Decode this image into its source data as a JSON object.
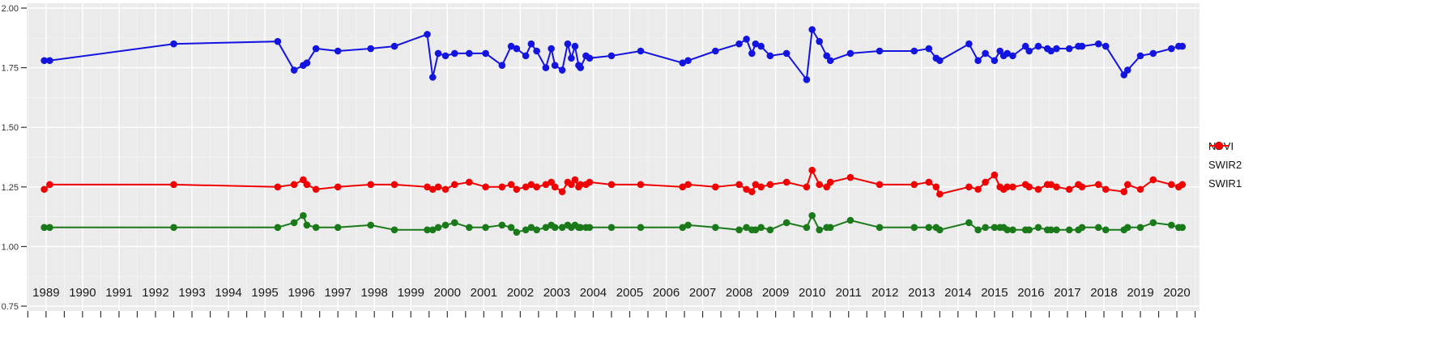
{
  "colors": {
    "panel_bg": "#EBEBEB",
    "grid_major": "#FFFFFF",
    "grid_minor": "#F7F7F7",
    "axis_text": "#333333",
    "tick": "#333333",
    "outer_bg": "#FFFFFF",
    "ndvi": "#1414E0",
    "swir2": "#1A7A1A",
    "swir1": "#F00000"
  },
  "legend": {
    "items": [
      {
        "label": "NDVI",
        "color": "#1414E0"
      },
      {
        "label": "SWIR2",
        "color": "#1A7A1A"
      },
      {
        "label": "SWIR1",
        "color": "#F00000"
      }
    ],
    "position": "right"
  },
  "chart_data": {
    "type": "line",
    "title": "",
    "xlabel": "",
    "ylabel": "",
    "grid": "major white + minor white on gray panel",
    "legend_position": "right",
    "xlim": [
      1988.47,
      2020.62
    ],
    "ylim": [
      0.75,
      2.0
    ],
    "x_tick_labels": [
      "1989",
      "1990",
      "1991",
      "1992",
      "1993",
      "1994",
      "1995",
      "1996",
      "1997",
      "1998",
      "1999",
      "2000",
      "2001",
      "2002",
      "2003",
      "2004",
      "2005",
      "2006",
      "2007",
      "2008",
      "2009",
      "2010",
      "2011",
      "2012",
      "2013",
      "2014",
      "2015",
      "2016",
      "2017",
      "2018",
      "2019",
      "2020"
    ],
    "x_ticks": [
      1989,
      1990,
      1991,
      1992,
      1993,
      1994,
      1995,
      1996,
      1997,
      1998,
      1999,
      2000,
      2001,
      2002,
      2003,
      2004,
      2005,
      2006,
      2007,
      2008,
      2009,
      2010,
      2011,
      2012,
      2013,
      2014,
      2015,
      2016,
      2017,
      2018,
      2019,
      2020
    ],
    "y_ticks": [
      2.0,
      1.75,
      1.5,
      1.25,
      1.0,
      0.75
    ],
    "y_tick_labels": [
      "2.00",
      "1.75",
      "1.50",
      "1.25",
      "1.00",
      "0.75"
    ],
    "x": [
      1988.95,
      1989.1,
      1992.5,
      1995.35,
      1995.8,
      1996.05,
      1996.15,
      1996.4,
      1997.0,
      1997.9,
      1998.55,
      1999.45,
      1999.6,
      1999.75,
      1999.95,
      2000.2,
      2000.6,
      2001.05,
      2001.5,
      2001.75,
      2001.9,
      2002.15,
      2002.3,
      2002.45,
      2002.7,
      2002.85,
      2002.95,
      2003.15,
      2003.3,
      2003.4,
      2003.5,
      2003.6,
      2003.65,
      2003.8,
      2003.9,
      2004.5,
      2005.3,
      2006.45,
      2006.6,
      2007.35,
      2008.0,
      2008.2,
      2008.35,
      2008.45,
      2008.6,
      2008.85,
      2009.3,
      2009.85,
      2010.0,
      2010.2,
      2010.4,
      2010.5,
      2011.05,
      2011.85,
      2012.8,
      2013.2,
      2013.4,
      2013.5,
      2014.3,
      2014.55,
      2014.75,
      2015.0,
      2015.15,
      2015.25,
      2015.35,
      2015.5,
      2015.85,
      2015.95,
      2016.2,
      2016.45,
      2016.55,
      2016.7,
      2017.05,
      2017.3,
      2017.4,
      2017.85,
      2018.05,
      2018.55,
      2018.65,
      2019.0,
      2019.35,
      2019.85,
      2020.05,
      2020.15
    ],
    "series": [
      {
        "name": "NDVI",
        "color": "#1414E0",
        "values": [
          1.78,
          1.78,
          1.85,
          1.86,
          1.74,
          1.76,
          1.77,
          1.83,
          1.82,
          1.83,
          1.84,
          1.89,
          1.71,
          1.81,
          1.8,
          1.81,
          1.81,
          1.81,
          1.76,
          1.84,
          1.83,
          1.8,
          1.85,
          1.82,
          1.75,
          1.83,
          1.76,
          1.74,
          1.85,
          1.79,
          1.84,
          1.76,
          1.75,
          1.8,
          1.79,
          1.8,
          1.82,
          1.77,
          1.78,
          1.82,
          1.85,
          1.87,
          1.81,
          1.85,
          1.84,
          1.8,
          1.81,
          1.7,
          1.91,
          1.86,
          1.8,
          1.78,
          1.81,
          1.82,
          1.82,
          1.83,
          1.79,
          1.78,
          1.85,
          1.78,
          1.81,
          1.78,
          1.82,
          1.8,
          1.81,
          1.8,
          1.84,
          1.82,
          1.84,
          1.83,
          1.82,
          1.83,
          1.83,
          1.84,
          1.84,
          1.85,
          1.84,
          1.72,
          1.74,
          1.8,
          1.81,
          1.83,
          1.84,
          1.84
        ]
      },
      {
        "name": "SWIR2",
        "color": "#1A7A1A",
        "values": [
          1.08,
          1.08,
          1.08,
          1.08,
          1.1,
          1.13,
          1.09,
          1.08,
          1.08,
          1.09,
          1.07,
          1.07,
          1.07,
          1.08,
          1.09,
          1.1,
          1.08,
          1.08,
          1.09,
          1.08,
          1.06,
          1.07,
          1.08,
          1.07,
          1.08,
          1.09,
          1.08,
          1.08,
          1.09,
          1.08,
          1.09,
          1.08,
          1.08,
          1.08,
          1.08,
          1.08,
          1.08,
          1.08,
          1.09,
          1.08,
          1.07,
          1.08,
          1.07,
          1.07,
          1.08,
          1.07,
          1.1,
          1.08,
          1.13,
          1.07,
          1.08,
          1.08,
          1.11,
          1.08,
          1.08,
          1.08,
          1.08,
          1.07,
          1.1,
          1.07,
          1.08,
          1.08,
          1.08,
          1.08,
          1.07,
          1.07,
          1.07,
          1.07,
          1.08,
          1.07,
          1.07,
          1.07,
          1.07,
          1.07,
          1.08,
          1.08,
          1.07,
          1.07,
          1.08,
          1.08,
          1.1,
          1.09,
          1.08,
          1.08
        ]
      },
      {
        "name": "SWIR1",
        "color": "#F00000",
        "values": [
          1.24,
          1.26,
          1.26,
          1.25,
          1.26,
          1.28,
          1.26,
          1.24,
          1.25,
          1.26,
          1.26,
          1.25,
          1.24,
          1.25,
          1.24,
          1.26,
          1.27,
          1.25,
          1.25,
          1.26,
          1.24,
          1.25,
          1.26,
          1.25,
          1.26,
          1.27,
          1.25,
          1.23,
          1.27,
          1.26,
          1.28,
          1.25,
          1.26,
          1.26,
          1.27,
          1.26,
          1.26,
          1.25,
          1.26,
          1.25,
          1.26,
          1.24,
          1.23,
          1.26,
          1.25,
          1.26,
          1.27,
          1.25,
          1.32,
          1.26,
          1.25,
          1.27,
          1.29,
          1.26,
          1.26,
          1.27,
          1.25,
          1.22,
          1.25,
          1.24,
          1.27,
          1.3,
          1.25,
          1.24,
          1.25,
          1.25,
          1.26,
          1.25,
          1.24,
          1.26,
          1.26,
          1.25,
          1.24,
          1.26,
          1.25,
          1.26,
          1.24,
          1.23,
          1.26,
          1.24,
          1.28,
          1.26,
          1.25,
          1.26
        ]
      }
    ]
  }
}
